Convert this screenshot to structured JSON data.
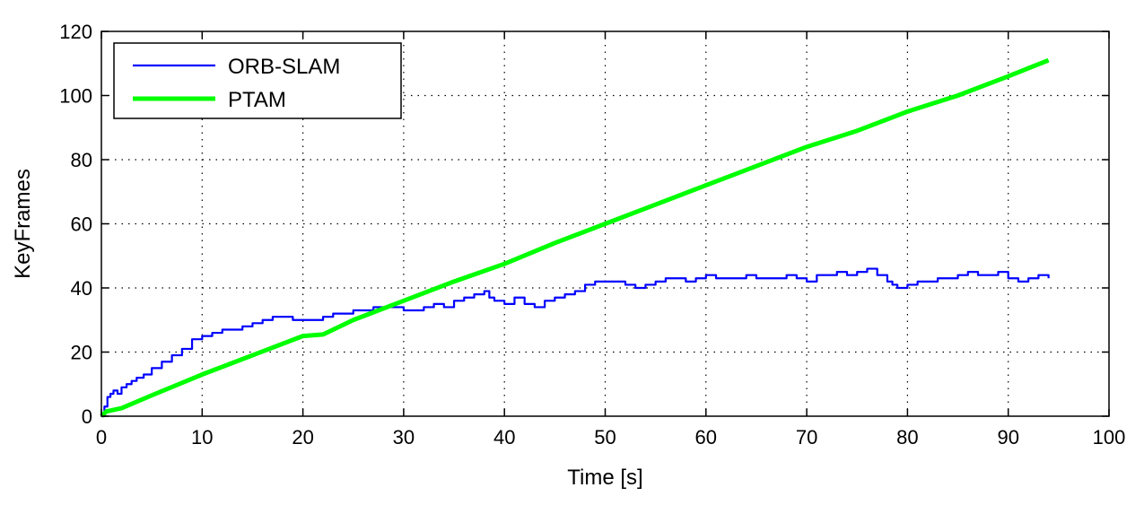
{
  "chart_data": {
    "type": "line",
    "xlabel": "Time [s]",
    "ylabel": "KeyFrames",
    "xlim": [
      0,
      100
    ],
    "ylim": [
      0,
      120
    ],
    "x_ticks": [
      0,
      10,
      20,
      30,
      40,
      50,
      60,
      70,
      80,
      90,
      100
    ],
    "y_ticks": [
      0,
      20,
      40,
      60,
      80,
      100,
      120
    ],
    "grid": true,
    "legend_position": "top-left",
    "series": [
      {
        "name": "ORB-SLAM",
        "color": "#0000ff",
        "step": true,
        "points": [
          [
            0,
            0
          ],
          [
            0.3,
            3
          ],
          [
            0.6,
            6
          ],
          [
            0.9,
            7
          ],
          [
            1.2,
            8
          ],
          [
            1.6,
            7
          ],
          [
            2,
            9
          ],
          [
            2.5,
            10
          ],
          [
            3,
            11
          ],
          [
            3.5,
            12
          ],
          [
            4.2,
            13
          ],
          [
            5,
            15
          ],
          [
            6,
            17
          ],
          [
            7,
            19
          ],
          [
            8,
            21
          ],
          [
            9,
            24
          ],
          [
            10,
            25
          ],
          [
            11,
            26
          ],
          [
            12,
            27
          ],
          [
            13,
            27
          ],
          [
            14,
            28
          ],
          [
            15,
            29
          ],
          [
            16,
            30
          ],
          [
            17,
            31
          ],
          [
            18,
            31
          ],
          [
            19,
            30
          ],
          [
            20,
            30
          ],
          [
            22,
            31
          ],
          [
            23,
            32
          ],
          [
            25,
            33
          ],
          [
            27,
            34
          ],
          [
            29,
            34
          ],
          [
            30,
            33
          ],
          [
            32,
            34
          ],
          [
            33,
            35
          ],
          [
            34,
            34
          ],
          [
            35,
            36
          ],
          [
            36,
            37
          ],
          [
            37,
            38
          ],
          [
            38,
            39
          ],
          [
            38.5,
            37
          ],
          [
            39,
            36
          ],
          [
            40,
            35
          ],
          [
            41,
            37
          ],
          [
            42,
            35
          ],
          [
            43,
            34
          ],
          [
            44,
            36
          ],
          [
            45,
            37
          ],
          [
            46,
            38
          ],
          [
            47,
            39
          ],
          [
            48,
            41
          ],
          [
            49,
            42
          ],
          [
            51,
            42
          ],
          [
            52,
            41
          ],
          [
            53,
            40
          ],
          [
            54,
            41
          ],
          [
            55,
            42
          ],
          [
            56,
            43
          ],
          [
            58,
            42
          ],
          [
            59,
            43
          ],
          [
            60,
            44
          ],
          [
            61,
            43
          ],
          [
            63,
            43
          ],
          [
            64,
            44
          ],
          [
            65,
            43
          ],
          [
            67,
            43
          ],
          [
            68,
            44
          ],
          [
            69,
            43
          ],
          [
            70,
            42
          ],
          [
            71,
            44
          ],
          [
            72,
            44
          ],
          [
            73,
            45
          ],
          [
            74,
            44
          ],
          [
            75,
            45
          ],
          [
            76,
            46
          ],
          [
            77,
            44
          ],
          [
            78,
            42
          ],
          [
            78.5,
            41
          ],
          [
            79,
            40
          ],
          [
            80,
            41
          ],
          [
            81,
            42
          ],
          [
            82,
            42
          ],
          [
            83,
            43
          ],
          [
            84,
            43
          ],
          [
            85,
            44
          ],
          [
            86,
            45
          ],
          [
            87,
            44
          ],
          [
            88,
            44
          ],
          [
            89,
            45
          ],
          [
            90,
            43
          ],
          [
            91,
            42
          ],
          [
            92,
            43
          ],
          [
            93,
            44
          ],
          [
            94,
            43
          ]
        ]
      },
      {
        "name": "PTAM",
        "color": "#00ff00",
        "step": false,
        "points": [
          [
            0,
            0
          ],
          [
            0.5,
            1.5
          ],
          [
            2,
            2.5
          ],
          [
            5,
            6.5
          ],
          [
            10,
            13
          ],
          [
            15,
            19
          ],
          [
            20,
            25
          ],
          [
            22,
            25.5
          ],
          [
            25,
            30
          ],
          [
            30,
            36
          ],
          [
            35,
            42
          ],
          [
            40,
            47.5
          ],
          [
            45,
            54
          ],
          [
            50,
            60
          ],
          [
            55,
            66
          ],
          [
            60,
            72
          ],
          [
            65,
            78
          ],
          [
            70,
            84
          ],
          [
            75,
            89
          ],
          [
            80,
            95
          ],
          [
            85,
            100
          ],
          [
            90,
            106
          ],
          [
            94,
            111
          ]
        ]
      }
    ]
  }
}
